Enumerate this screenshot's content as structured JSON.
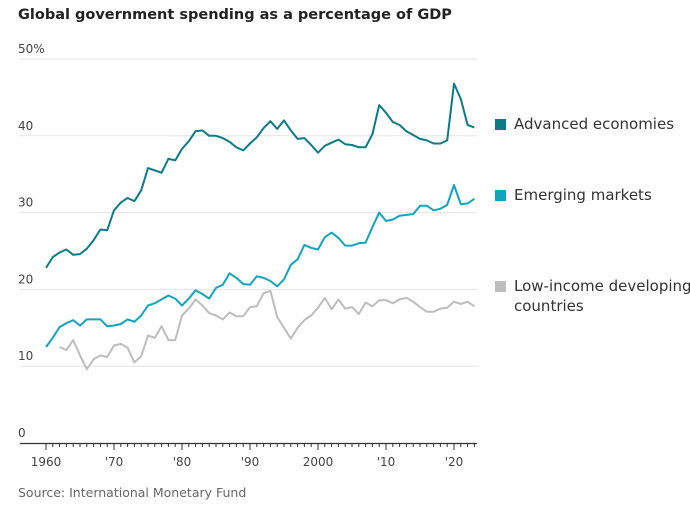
{
  "chart_data": {
    "type": "line",
    "title": "Global government spending as a percentage of GDP",
    "source": "Source: International Monetary Fund",
    "xlim": [
      1960,
      2023
    ],
    "ylim": [
      0,
      50
    ],
    "yticks": [
      {
        "v": 0,
        "label": "0"
      },
      {
        "v": 10,
        "label": "10"
      },
      {
        "v": 20,
        "label": "20"
      },
      {
        "v": 30,
        "label": "30"
      },
      {
        "v": 40,
        "label": "40"
      },
      {
        "v": 50,
        "label": "50%"
      }
    ],
    "xticks": [
      {
        "v": 1960,
        "label": "1960"
      },
      {
        "v": 1970,
        "label": "'70"
      },
      {
        "v": 1980,
        "label": "'80"
      },
      {
        "v": 1990,
        "label": "'90"
      },
      {
        "v": 2000,
        "label": "2000"
      },
      {
        "v": 2010,
        "label": "'10"
      },
      {
        "v": 2020,
        "label": "'20"
      }
    ],
    "grid": true,
    "legend_placement": "right",
    "series": [
      {
        "name": "Advanced economies",
        "color": "#0b7b86",
        "start": 1960,
        "values": [
          22.8,
          24.2,
          24.8,
          25.2,
          24.5,
          24.6,
          25.3,
          26.4,
          27.8,
          27.7,
          30.3,
          31.3,
          31.9,
          31.5,
          32.9,
          35.8,
          35.5,
          35.2,
          37.0,
          36.8,
          38.3,
          39.3,
          40.6,
          40.7,
          40.0,
          40.0,
          39.7,
          39.2,
          38.5,
          38.1,
          39.0,
          39.8,
          41.0,
          41.9,
          40.9,
          42.0,
          40.7,
          39.6,
          39.7,
          38.8,
          37.8,
          38.7,
          39.1,
          39.5,
          38.9,
          38.8,
          38.5,
          38.5,
          40.2,
          44.0,
          43.0,
          41.8,
          41.4,
          40.6,
          40.1,
          39.6,
          39.4,
          39.0,
          39.0,
          39.4,
          46.8,
          44.8,
          41.4,
          41.1
        ]
      },
      {
        "name": "Emerging markets",
        "color": "#12a4bf",
        "start": 1960,
        "values": [
          12.5,
          13.7,
          15.1,
          15.6,
          16.0,
          15.3,
          16.1,
          16.1,
          16.1,
          15.2,
          15.3,
          15.5,
          16.1,
          15.8,
          16.6,
          17.9,
          18.2,
          18.7,
          19.2,
          18.8,
          17.9,
          18.8,
          19.9,
          19.4,
          18.8,
          20.2,
          20.6,
          22.1,
          21.5,
          20.7,
          20.6,
          21.7,
          21.5,
          21.1,
          20.4,
          21.3,
          23.2,
          23.9,
          25.8,
          25.4,
          25.2,
          26.8,
          27.4,
          26.7,
          25.7,
          25.7,
          26.0,
          26.1,
          28.1,
          30.0,
          28.9,
          29.1,
          29.6,
          29.7,
          29.8,
          30.9,
          30.9,
          30.3,
          30.5,
          31.0,
          33.6,
          31.1,
          31.2,
          31.8
        ]
      },
      {
        "name": "Low-income developing countries",
        "color": "#bdbdbd",
        "start": 1962,
        "values": [
          12.5,
          12.1,
          13.4,
          11.4,
          9.6,
          10.9,
          11.4,
          11.2,
          12.7,
          12.9,
          12.4,
          10.5,
          11.3,
          14.0,
          13.7,
          15.2,
          13.4,
          13.4,
          16.6,
          17.5,
          18.7,
          17.9,
          16.9,
          16.6,
          16.1,
          17.0,
          16.5,
          16.5,
          17.7,
          17.8,
          19.5,
          19.8,
          16.4,
          15.0,
          13.6,
          15.0,
          16.0,
          16.6,
          17.6,
          18.9,
          17.4,
          18.7,
          17.5,
          17.7,
          16.8,
          18.3,
          17.8,
          18.6,
          18.6,
          18.2,
          18.7,
          18.9,
          18.4,
          17.7,
          17.1,
          17.1,
          17.5,
          17.6,
          18.4,
          18.1,
          18.4,
          17.8
        ]
      }
    ]
  }
}
